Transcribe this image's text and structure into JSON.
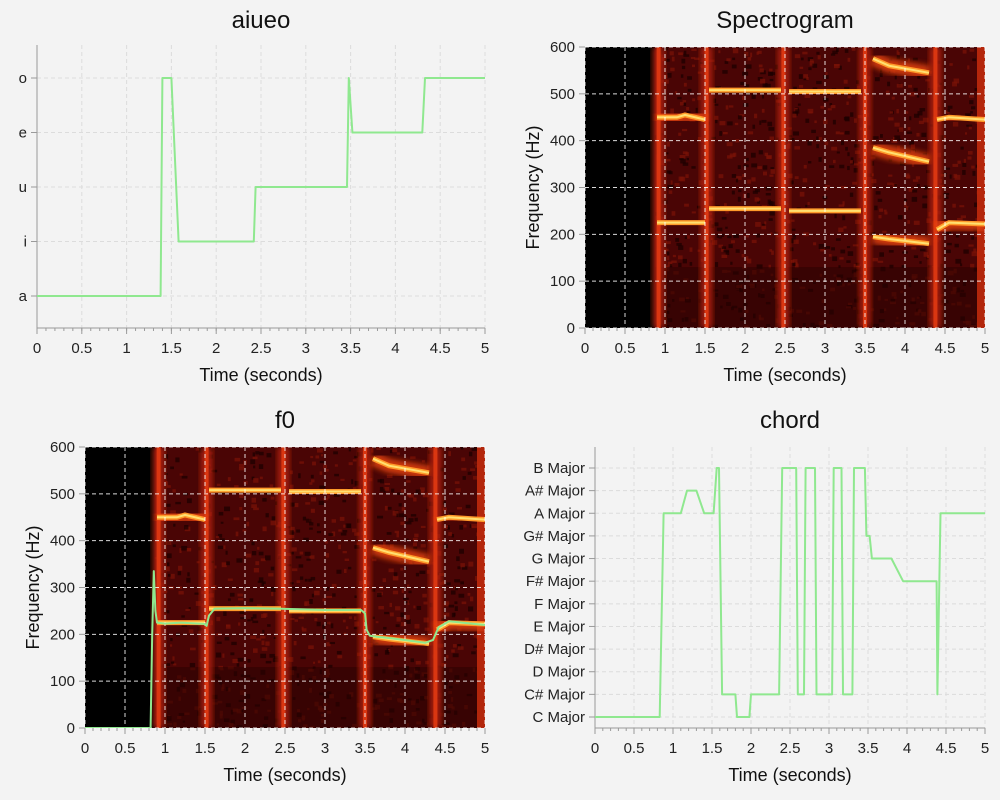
{
  "colors": {
    "line": "#8fe88f",
    "background": "#f3f3f3",
    "spectrogram_low": "#000000",
    "spectrogram_high": "#ffe070"
  },
  "chart_data": [
    {
      "type": "line",
      "title": "aiueo",
      "xlabel": "Time (seconds)",
      "ylabel": "",
      "xlim": [
        0,
        5
      ],
      "xticks": [
        "0",
        "0.5",
        "1",
        "1.5",
        "2",
        "2.5",
        "3",
        "3.5",
        "4",
        "4.5",
        "5"
      ],
      "categories": [
        "a",
        "i",
        "u",
        "e",
        "o"
      ],
      "series": [
        {
          "x": [
            0,
            1.38,
            1.4,
            1.5,
            1.58,
            1.6,
            2.42,
            2.44,
            3.46,
            3.48,
            3.52,
            4.3,
            4.33,
            5
          ],
          "y": [
            "a",
            "a",
            "o",
            "o",
            "i",
            "i",
            "i",
            "u",
            "u",
            "o",
            "e",
            "e",
            "o",
            "o"
          ]
        }
      ]
    },
    {
      "type": "heatmap",
      "title": "Spectrogram",
      "xlabel": "Time (seconds)",
      "ylabel": "Frequency (Hz)",
      "xlim": [
        0,
        5
      ],
      "ylim": [
        0,
        600
      ],
      "xticks": [
        "0",
        "0.5",
        "1",
        "1.5",
        "2",
        "2.5",
        "3",
        "3.5",
        "4",
        "4.5",
        "5"
      ],
      "yticks": [
        "0",
        "100",
        "200",
        "300",
        "400",
        "500",
        "600"
      ],
      "formants": [
        {
          "x": [
            0.9,
            1.15,
            1.25,
            1.5
          ],
          "y": [
            450,
            450,
            455,
            445
          ]
        },
        {
          "x": [
            0.9,
            1.5
          ],
          "y": [
            225,
            225
          ]
        },
        {
          "x": [
            1.55,
            2.45
          ],
          "y": [
            508,
            508
          ]
        },
        {
          "x": [
            1.55,
            2.45
          ],
          "y": [
            255,
            255
          ]
        },
        {
          "x": [
            2.55,
            3.45
          ],
          "y": [
            505,
            505
          ]
        },
        {
          "x": [
            2.55,
            3.45
          ],
          "y": [
            250,
            250
          ]
        },
        {
          "x": [
            3.6,
            3.8,
            4.3
          ],
          "y": [
            575,
            560,
            545
          ]
        },
        {
          "x": [
            3.6,
            3.8,
            4.3
          ],
          "y": [
            385,
            375,
            355
          ]
        },
        {
          "x": [
            3.6,
            3.8,
            4.3
          ],
          "y": [
            195,
            190,
            180
          ]
        },
        {
          "x": [
            4.4,
            4.55,
            5
          ],
          "y": [
            445,
            450,
            445
          ]
        },
        {
          "x": [
            4.4,
            4.55,
            5
          ],
          "y": [
            210,
            225,
            222
          ]
        }
      ],
      "onsets": [
        0.92,
        1.52,
        2.48,
        3.5,
        4.38
      ]
    },
    {
      "type": "heatmap",
      "title": "f0",
      "xlabel": "Time (seconds)",
      "ylabel": "Frequency (Hz)",
      "xlim": [
        0,
        5
      ],
      "ylim": [
        0,
        600
      ],
      "xticks": [
        "0",
        "0.5",
        "1",
        "1.5",
        "2",
        "2.5",
        "3",
        "3.5",
        "4",
        "4.5",
        "5"
      ],
      "yticks": [
        "0",
        "100",
        "200",
        "300",
        "400",
        "500",
        "600"
      ],
      "formants": [
        {
          "x": [
            0.9,
            1.15,
            1.25,
            1.5
          ],
          "y": [
            450,
            450,
            455,
            445
          ]
        },
        {
          "x": [
            0.9,
            1.5
          ],
          "y": [
            225,
            225
          ]
        },
        {
          "x": [
            1.55,
            2.45
          ],
          "y": [
            508,
            508
          ]
        },
        {
          "x": [
            1.55,
            2.45
          ],
          "y": [
            255,
            255
          ]
        },
        {
          "x": [
            2.55,
            3.45
          ],
          "y": [
            505,
            505
          ]
        },
        {
          "x": [
            2.55,
            3.45
          ],
          "y": [
            250,
            250
          ]
        },
        {
          "x": [
            3.6,
            3.8,
            4.3
          ],
          "y": [
            575,
            560,
            545
          ]
        },
        {
          "x": [
            3.6,
            3.8,
            4.3
          ],
          "y": [
            385,
            375,
            355
          ]
        },
        {
          "x": [
            3.6,
            3.8,
            4.3
          ],
          "y": [
            195,
            190,
            180
          ]
        },
        {
          "x": [
            4.4,
            4.55,
            5
          ],
          "y": [
            445,
            450,
            445
          ]
        },
        {
          "x": [
            4.4,
            4.55,
            5
          ],
          "y": [
            210,
            225,
            222
          ]
        }
      ],
      "onsets": [
        0.92,
        1.52,
        2.48,
        3.5,
        4.38
      ],
      "series": [
        {
          "x": [
            0,
            0.82,
            0.84,
            0.86,
            0.88,
            0.9,
            1.0,
            1.2,
            1.5,
            1.52,
            1.55,
            1.62,
            2.0,
            2.4,
            3.0,
            3.45,
            3.5,
            3.52,
            3.56,
            3.65,
            3.9,
            4.25,
            4.35,
            4.42,
            4.55,
            5.0
          ],
          "y": [
            0,
            0,
            200,
            335,
            250,
            225,
            223,
            225,
            222,
            218,
            240,
            255,
            256,
            255,
            252,
            252,
            245,
            210,
            197,
            195,
            190,
            182,
            188,
            215,
            228,
            220
          ]
        }
      ]
    },
    {
      "type": "line",
      "title": "chord",
      "xlabel": "Time (seconds)",
      "ylabel": "",
      "xlim": [
        0,
        5
      ],
      "xticks": [
        "0",
        "0.5",
        "1",
        "1.5",
        "2",
        "2.5",
        "3",
        "3.5",
        "4",
        "4.5",
        "5"
      ],
      "categories": [
        "C Major",
        "C# Major",
        "D Major",
        "D# Major",
        "E Major",
        "F Major",
        "F# Major",
        "G Major",
        "G# Major",
        "A Major",
        "A# Major",
        "B Major"
      ],
      "series": [
        {
          "x": [
            0,
            0.83,
            0.88,
            1.1,
            1.18,
            1.3,
            1.4,
            1.52,
            1.56,
            1.59,
            1.63,
            1.8,
            1.82,
            1.98,
            2.0,
            2.36,
            2.4,
            2.5,
            2.52,
            2.58,
            2.6,
            2.68,
            2.7,
            2.82,
            2.84,
            3.04,
            3.06,
            3.16,
            3.18,
            3.3,
            3.32,
            3.34,
            3.38,
            3.4,
            3.46,
            3.48,
            3.52,
            3.55,
            3.6,
            3.65,
            3.72,
            3.8,
            3.95,
            4.0,
            4.3,
            4.38,
            4.39,
            4.43,
            4.45,
            4.97,
            5.0
          ],
          "y": [
            "C Major",
            "C Major",
            "A Major",
            "A Major",
            "A# Major",
            "A# Major",
            "A Major",
            "A Major",
            "B Major",
            "B Major",
            "C# Major",
            "C# Major",
            "C Major",
            "C Major",
            "C# Major",
            "C# Major",
            "B Major",
            "B Major",
            "B Major",
            "B Major",
            "C# Major",
            "C# Major",
            "B Major",
            "B Major",
            "C# Major",
            "C# Major",
            "B Major",
            "B Major",
            "C# Major",
            "C# Major",
            "B Major",
            "B Major",
            "B Major",
            "B Major",
            "B Major",
            "G# Major",
            "G# Major",
            "G Major",
            "G Major",
            "G Major",
            "G Major",
            "G Major",
            "F# Major",
            "F# Major",
            "F# Major",
            "F# Major",
            "C# Major",
            "A Major",
            "A Major",
            "A Major",
            "A Major"
          ]
        }
      ]
    }
  ]
}
